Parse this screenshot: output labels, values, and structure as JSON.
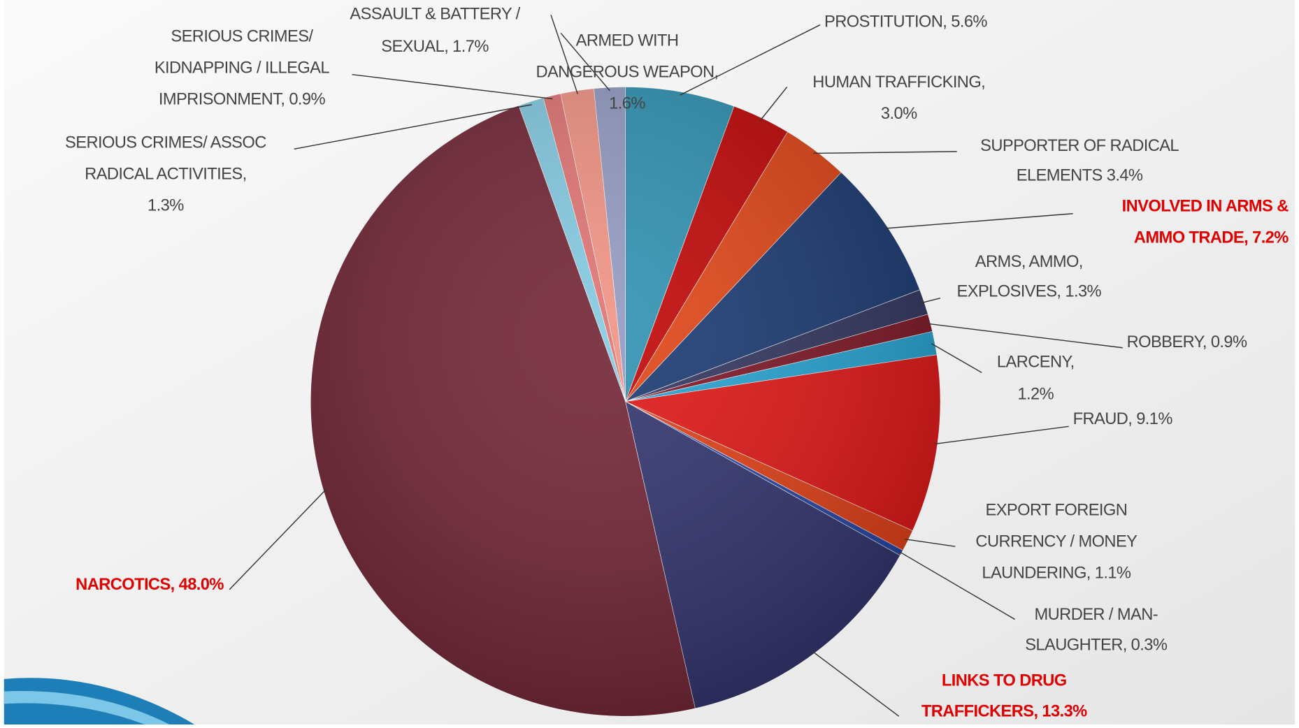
{
  "chart_data": {
    "type": "pie",
    "labels": [
      [
        "PROSTITUTION, 5.6%"
      ],
      [
        "HUMAN TRAFFICKING,",
        "3.0%"
      ],
      [
        "SUPPORTER OF RADICAL",
        "ELEMENTS 3.4%"
      ],
      [
        "INVOLVED IN ARMS &",
        "AMMO TRADE, 7.2%"
      ],
      [
        "ARMS, AMMO,",
        "EXPLOSIVES, 1.3%"
      ],
      [
        "ROBBERY, 0.9%"
      ],
      [
        "LARCENY,",
        "1.2%"
      ],
      [
        "FRAUD, 9.1%"
      ],
      [
        "EXPORT FOREIGN",
        "CURRENCY / MONEY",
        "LAUNDERING, 1.1%"
      ],
      [
        "MURDER / MAN-",
        "SLAUGHTER, 0.3%"
      ],
      [
        "LINKS TO DRUG",
        "TRAFFICKERS, 13.3%"
      ],
      [
        "NARCOTICS, 48.0%"
      ],
      [
        "SERIOUS CRIMES/ ASSOC",
        "RADICAL ACTIVITIES,",
        "1.3%"
      ],
      [
        "SERIOUS CRIMES/",
        "KIDNAPPING / ILLEGAL",
        "IMPRISONMENT, 0.9%"
      ],
      [
        "ASSAULT & BATTERY /",
        "SEXUAL, 1.7%"
      ],
      [
        "ARMED WITH",
        "DANGEROUS WEAPON,",
        "1.6%"
      ]
    ],
    "values": [
      5.6,
      3.0,
      3.4,
      7.2,
      1.3,
      0.9,
      1.2,
      9.1,
      1.1,
      0.3,
      13.3,
      48.0,
      1.3,
      0.9,
      1.7,
      1.6
    ],
    "colors": [
      "#2a8fb0",
      "#c00000",
      "#e04010",
      "#14346e",
      "#2c2f5a",
      "#7a1020",
      "#20a0d0",
      "#e01010",
      "#e03a10",
      "#2040a0",
      "#2c2e6a",
      "#6e1f30",
      "#80c8e0",
      "#e07070",
      "#f09080",
      "#9098c0"
    ],
    "label_colors": [
      "#444",
      "#444",
      "#444",
      "#e00000",
      "#444",
      "#444",
      "#444",
      "#444",
      "#444",
      "#444",
      "#e00000",
      "#e00000",
      "#444",
      "#444",
      "#444",
      "#444"
    ]
  }
}
